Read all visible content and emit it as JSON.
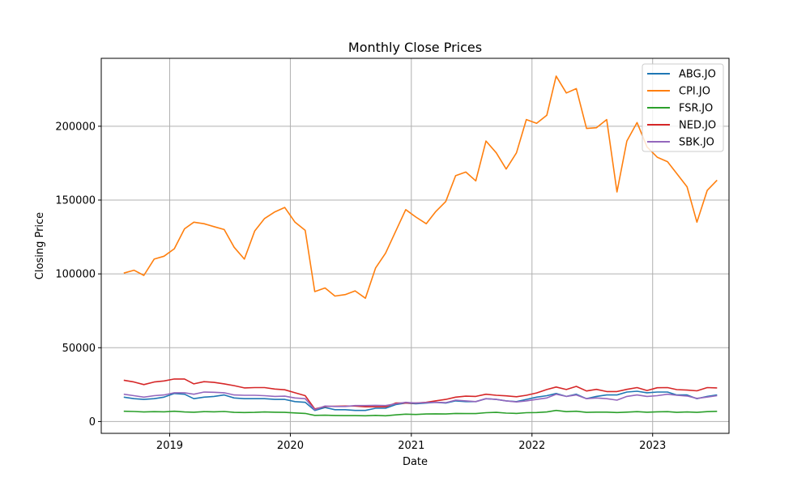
{
  "chart_data": {
    "type": "line",
    "title": "Monthly Close Prices",
    "xlabel": "Date",
    "ylabel": "Closing Price",
    "xlim": [
      "2018-06-08",
      "2023-08-20"
    ],
    "ylim": [
      -8000,
      246000
    ],
    "x_ticks": [
      {
        "date": "2019-01-01",
        "label": "2019"
      },
      {
        "date": "2020-01-01",
        "label": "2020"
      },
      {
        "date": "2021-01-01",
        "label": "2021"
      },
      {
        "date": "2022-01-01",
        "label": "2022"
      },
      {
        "date": "2023-01-01",
        "label": "2023"
      }
    ],
    "y_ticks": [
      {
        "value": 0,
        "label": "0"
      },
      {
        "value": 50000,
        "label": "50000"
      },
      {
        "value": 100000,
        "label": "100000"
      },
      {
        "value": 150000,
        "label": "150000"
      },
      {
        "value": 200000,
        "label": "200000"
      }
    ],
    "grid": true,
    "legend_position": "top-right",
    "x": [
      "2018-08",
      "2018-09",
      "2018-10",
      "2018-11",
      "2018-12",
      "2019-01",
      "2019-02",
      "2019-03",
      "2019-04",
      "2019-05",
      "2019-06",
      "2019-07",
      "2019-08",
      "2019-09",
      "2019-10",
      "2019-11",
      "2019-12",
      "2020-01",
      "2020-02",
      "2020-03",
      "2020-04",
      "2020-05",
      "2020-06",
      "2020-07",
      "2020-08",
      "2020-09",
      "2020-10",
      "2020-11",
      "2020-12",
      "2021-01",
      "2021-02",
      "2021-03",
      "2021-04",
      "2021-05",
      "2021-06",
      "2021-07",
      "2021-08",
      "2021-09",
      "2021-10",
      "2021-11",
      "2021-12",
      "2022-01",
      "2022-02",
      "2022-03",
      "2022-04",
      "2022-05",
      "2022-06",
      "2022-07",
      "2022-08",
      "2022-09",
      "2022-10",
      "2022-11",
      "2022-12",
      "2023-01",
      "2023-02",
      "2023-03",
      "2023-04",
      "2023-05",
      "2023-06",
      "2023-07"
    ],
    "series": [
      {
        "name": "ABG.JO",
        "color": "#1f77b4",
        "values": [
          16500,
          15500,
          15000,
          15500,
          16500,
          19000,
          18500,
          15500,
          16500,
          17000,
          18000,
          16000,
          15500,
          15500,
          15500,
          15000,
          15000,
          13500,
          13000,
          7500,
          9500,
          8000,
          8000,
          7500,
          7500,
          9000,
          9000,
          11500,
          12500,
          12000,
          12500,
          13000,
          12500,
          14000,
          13500,
          13500,
          15500,
          15000,
          14000,
          13500,
          15000,
          16500,
          17500,
          19000,
          17000,
          18500,
          15500,
          17000,
          18000,
          18000,
          20000,
          20500,
          19500,
          20000,
          20000,
          18000,
          18000,
          15500,
          17000,
          18000
        ]
      },
      {
        "name": "CPI.JO",
        "color": "#ff7f0e",
        "values": [
          100500,
          102500,
          99000,
          110000,
          112000,
          117000,
          130500,
          135000,
          134000,
          132000,
          130000,
          118000,
          110000,
          129000,
          137500,
          142000,
          145000,
          135000,
          129500,
          88000,
          90500,
          85000,
          86000,
          88500,
          83500,
          104000,
          114000,
          129000,
          143500,
          138500,
          134000,
          142000,
          149000,
          166500,
          169000,
          163000,
          190000,
          182000,
          171000,
          182000,
          204500,
          202000,
          207500,
          234000,
          222500,
          225500,
          198500,
          199000,
          204500,
          155500,
          190000,
          202500,
          186000,
          179000,
          176000,
          168000,
          159000,
          135000,
          156500,
          163500
        ]
      },
      {
        "name": "FSR.JO",
        "color": "#2ca02c",
        "values": [
          7000,
          6800,
          6500,
          6700,
          6600,
          7000,
          6500,
          6300,
          6700,
          6600,
          6800,
          6200,
          6100,
          6200,
          6500,
          6300,
          6200,
          5800,
          5500,
          4200,
          4300,
          4100,
          4000,
          4000,
          3900,
          4200,
          3900,
          4500,
          5000,
          4800,
          5100,
          5200,
          5100,
          5500,
          5400,
          5400,
          6000,
          6200,
          5700,
          5500,
          6000,
          6100,
          6500,
          7500,
          6700,
          7000,
          6200,
          6400,
          6400,
          6100,
          6400,
          6700,
          6300,
          6600,
          6700,
          6200,
          6500,
          6200,
          6700,
          6900
        ]
      },
      {
        "name": "NED.JO",
        "color": "#d62728",
        "values": [
          28000,
          26800,
          25000,
          26800,
          27500,
          28800,
          28800,
          25500,
          27000,
          26500,
          25500,
          24300,
          22800,
          23000,
          23000,
          22000,
          21500,
          19500,
          17500,
          8500,
          10200,
          10300,
          10500,
          10500,
          10000,
          10000,
          10000,
          12500,
          12500,
          12500,
          13000,
          14000,
          15000,
          16500,
          17200,
          17000,
          18500,
          17800,
          17400,
          16800,
          17800,
          19400,
          21700,
          23400,
          21700,
          23800,
          20700,
          21800,
          20300,
          20300,
          21800,
          23000,
          21000,
          22900,
          23000,
          21600,
          21300,
          20800,
          23000,
          22800
        ]
      },
      {
        "name": "SBK.JO",
        "color": "#9467bd",
        "values": [
          18500,
          17500,
          16500,
          17500,
          18000,
          19500,
          19500,
          18500,
          20000,
          19800,
          19500,
          18000,
          17800,
          17800,
          17500,
          17000,
          17200,
          16000,
          15500,
          8000,
          10500,
          10200,
          10200,
          10800,
          10800,
          11000,
          10800,
          12000,
          13000,
          12500,
          12800,
          13000,
          12800,
          14500,
          14000,
          13500,
          15500,
          15000,
          14000,
          13300,
          14000,
          15000,
          16000,
          18500,
          17000,
          18000,
          15500,
          16000,
          15500,
          14500,
          17000,
          18000,
          17000,
          17500,
          18500,
          17800,
          17300,
          15700,
          16600,
          17500
        ]
      }
    ]
  }
}
